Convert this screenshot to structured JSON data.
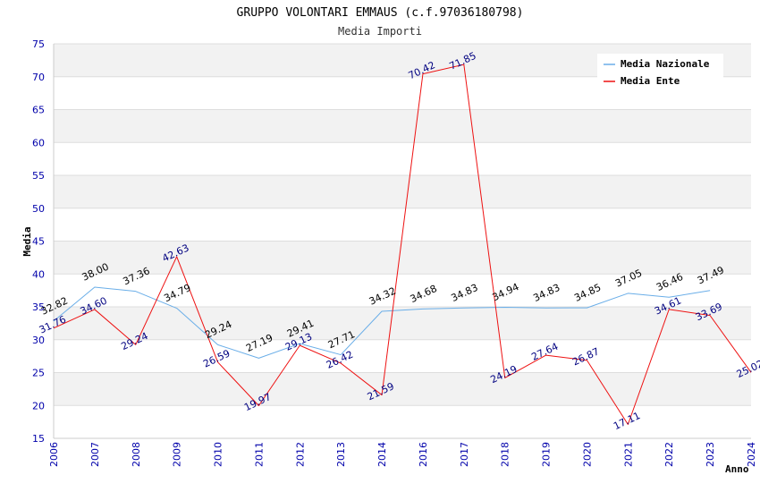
{
  "chart_data": {
    "type": "line",
    "title": "GRUPPO VOLONTARI EMMAUS (c.f.97036180798)",
    "subtitle": "Media Importi",
    "xlabel": "Anno",
    "ylabel": "Media",
    "ylim": [
      15,
      75
    ],
    "yticks": [
      15,
      20,
      25,
      30,
      35,
      40,
      45,
      50,
      55,
      60,
      65,
      70,
      75
    ],
    "categories": [
      "2006",
      "2007",
      "2008",
      "2009",
      "2010",
      "2011",
      "2012",
      "2013",
      "2014",
      "2016",
      "2017",
      "2018",
      "2019",
      "2020",
      "2021",
      "2022",
      "2023",
      "2024"
    ],
    "series": [
      {
        "name": "Media Nazionale",
        "color": "#6aaee8",
        "values": [
          32.82,
          38.0,
          37.36,
          34.79,
          29.24,
          27.19,
          29.41,
          27.71,
          34.32,
          34.68,
          34.83,
          34.94,
          34.83,
          34.85,
          37.05,
          36.46,
          37.49,
          null
        ],
        "labels": [
          "32.82",
          "38.00",
          "37.36",
          "34.79",
          "29.24",
          "27.19",
          "29.41",
          "27.71",
          "34.32",
          "34.68",
          "34.83",
          "34.94",
          "34.83",
          "34.85",
          "37.05",
          "36.46",
          "37.49",
          ""
        ]
      },
      {
        "name": "Media Ente",
        "color": "#ee1111",
        "values": [
          31.76,
          34.6,
          29.24,
          42.63,
          26.59,
          19.97,
          29.13,
          26.42,
          21.59,
          70.42,
          71.85,
          24.19,
          27.64,
          26.87,
          17.11,
          34.61,
          33.69,
          25.02
        ],
        "labels": [
          "31.76",
          "34.60",
          "29.24",
          "42.63",
          "26.59",
          "19.97",
          "29.13",
          "26.42",
          "21.59",
          "70.42",
          "71.85",
          "24.19",
          "27.64",
          "26.87",
          "17.11",
          "34.61",
          "33.69",
          "25.02"
        ]
      }
    ],
    "legend": "top-right",
    "grid": true
  }
}
